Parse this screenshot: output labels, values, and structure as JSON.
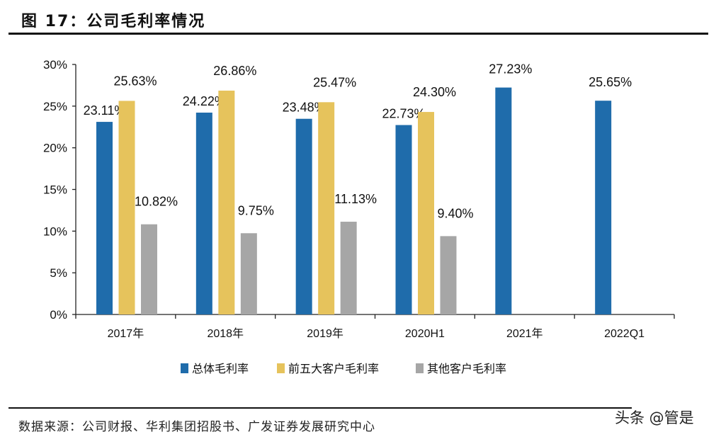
{
  "header": {
    "title": "图 17：公司毛利率情况"
  },
  "footer": {
    "source": "数据来源：公司财报、华利集团招股书、广发证券发展研究中心",
    "watermark": "头条 @管是"
  },
  "chart_data": {
    "type": "bar",
    "title": "",
    "categories": [
      "2017年",
      "2018年",
      "2019年",
      "2020H1",
      "2021年",
      "2022Q1"
    ],
    "series": [
      {
        "name": "总体毛利率",
        "color": "#1F6CAB",
        "values": [
          23.11,
          24.22,
          23.48,
          22.73,
          27.23,
          25.65
        ],
        "labels": [
          "23.11%",
          "24.22%",
          "23.48%",
          "22.73%",
          "27.23%",
          "25.65%"
        ]
      },
      {
        "name": "前五大客户毛利率",
        "color": "#E6C35C",
        "values": [
          25.63,
          26.86,
          25.47,
          24.3,
          null,
          null
        ],
        "labels": [
          "25.63%",
          "26.86%",
          "25.47%",
          "24.30%",
          null,
          null
        ]
      },
      {
        "name": "其他客户毛利率",
        "color": "#A6A6A6",
        "values": [
          10.82,
          9.75,
          11.13,
          9.4,
          null,
          null
        ],
        "labels": [
          "10.82%",
          "9.75%",
          "11.13%",
          "9.40%",
          null,
          null
        ]
      }
    ],
    "ylim": [
      0,
      30
    ],
    "yticks": [
      "0%",
      "5%",
      "10%",
      "15%",
      "20%",
      "25%",
      "30%"
    ],
    "xlabel": "",
    "ylabel": "",
    "grid": false,
    "legend": "bottom"
  }
}
